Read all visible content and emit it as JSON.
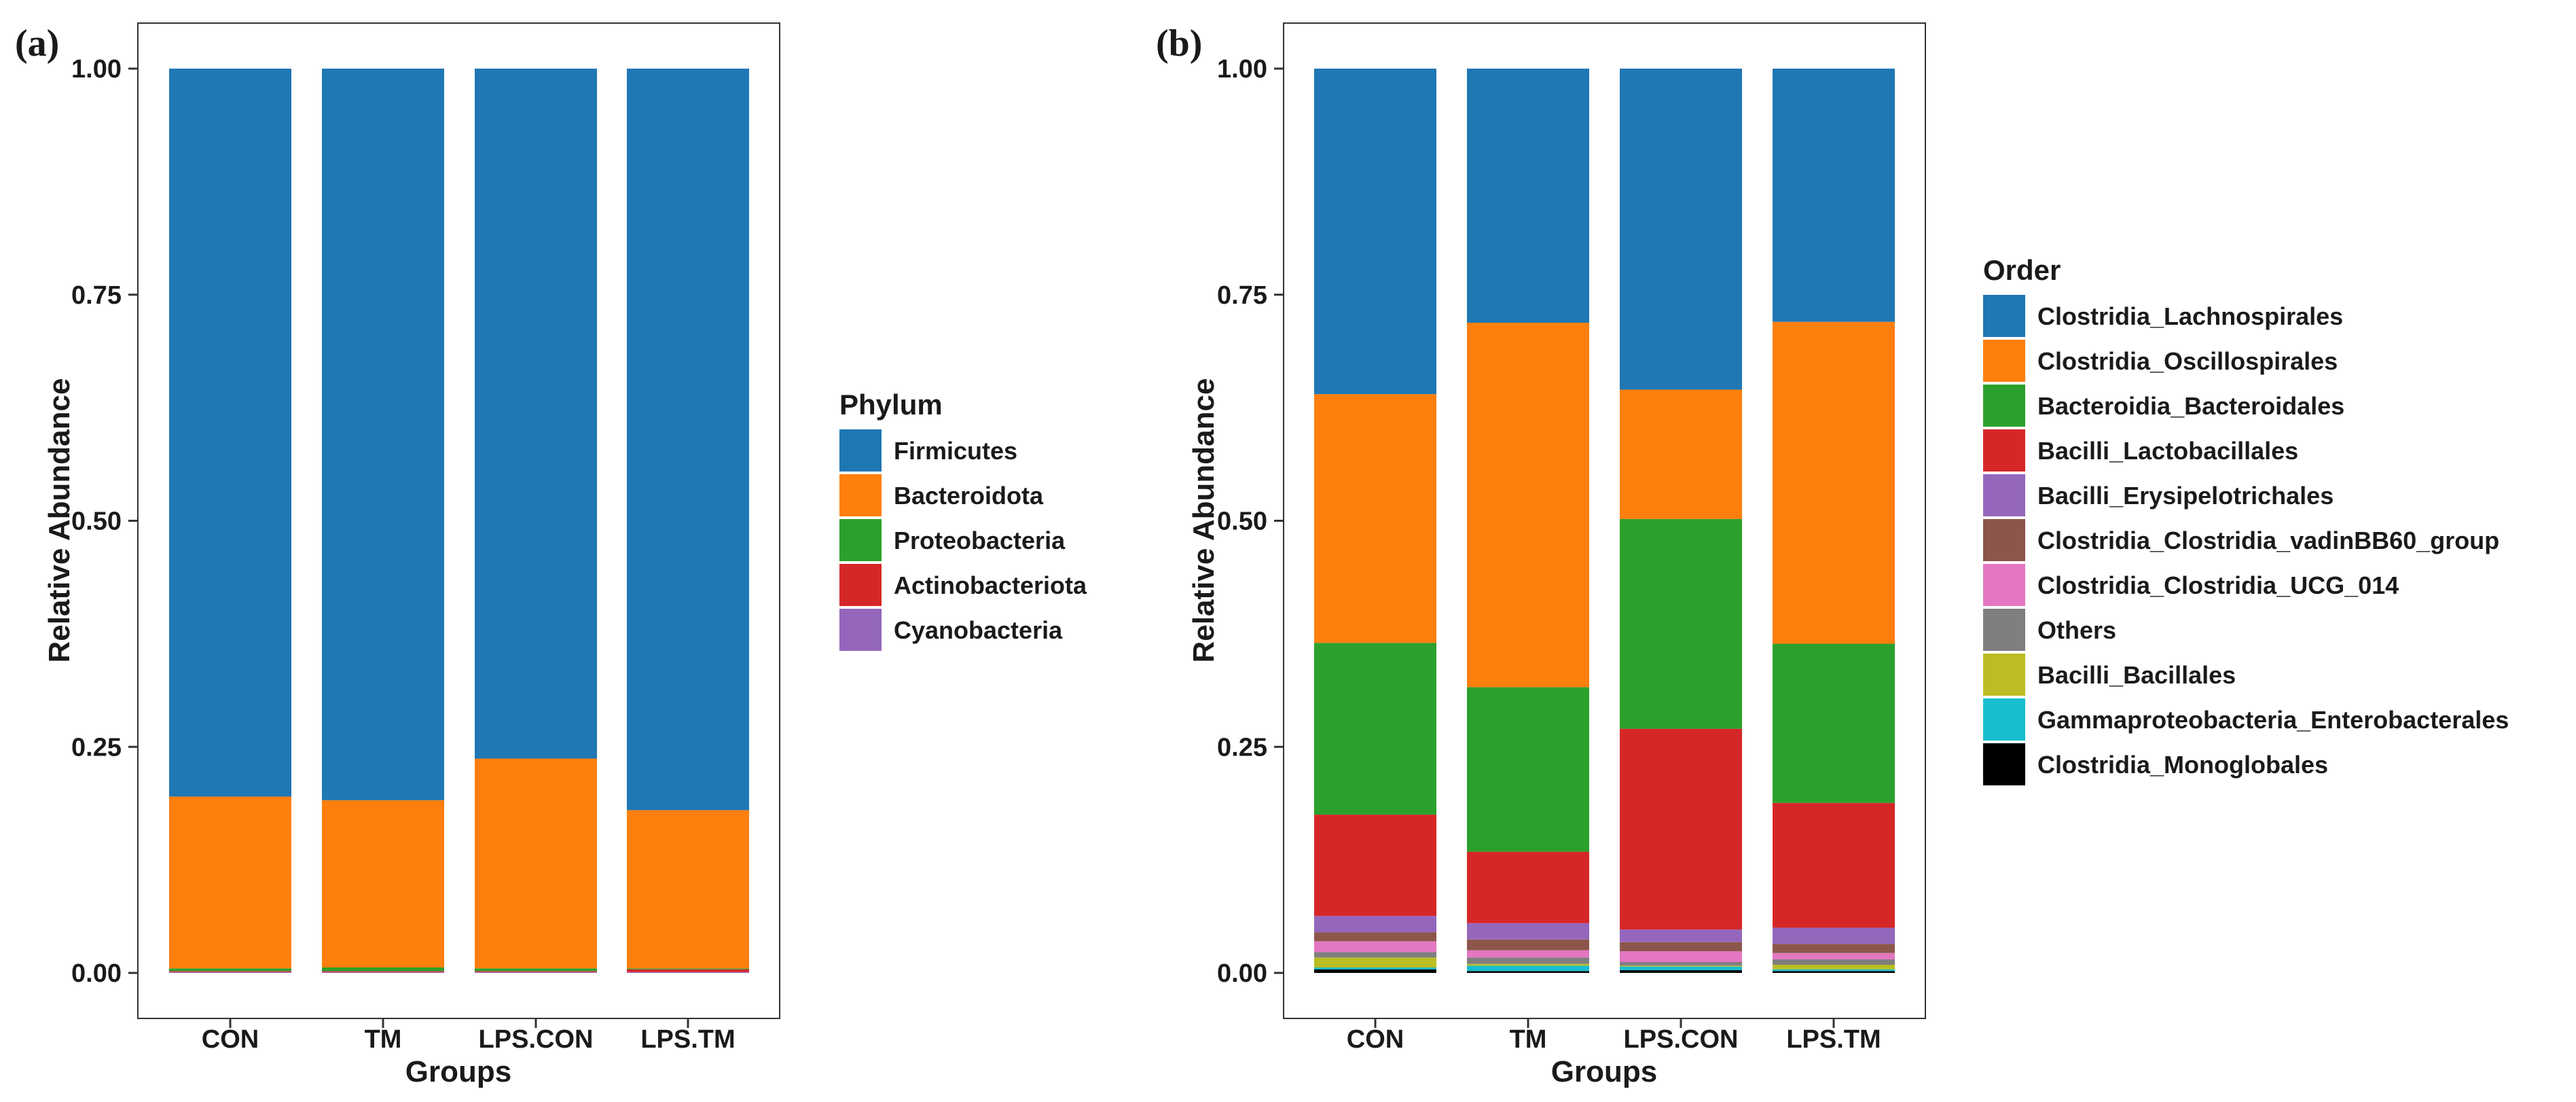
{
  "colors": {
    "Firmicutes": "#1f77b4",
    "Bacteroidota": "#ff7f0e",
    "Proteobacteria": "#2ca02c",
    "Actinobacteriota": "#d62728",
    "Cyanobacteria": "#9467bd",
    "Clostridia_Lachnospirales": "#1f77b4",
    "Clostridia_Oscillospirales": "#ff7f0e",
    "Bacteroidia_Bacteroidales": "#2ca02c",
    "Bacilli_Lactobacillales": "#d62728",
    "Bacilli_Erysipelotrichales": "#9467bd",
    "Clostridia_Clostridia_vadinBB60_group": "#8c564b",
    "Clostridia_Clostridia_UCG_014": "#e377c2",
    "Others": "#7f7f7f",
    "Bacilli_Bacillales": "#bcbd22",
    "Gammaproteobacteria_Enterobacterales": "#17becf",
    "Clostridia_Monoglobales": "#000000"
  },
  "chart_data": [
    {
      "type": "bar",
      "stacked": true,
      "panel_label": "(a)",
      "title": "",
      "xlabel": "Groups",
      "ylabel": "Relative Abundance",
      "ylim": [
        0,
        1
      ],
      "yticks": [
        "0.00",
        "0.25",
        "0.50",
        "0.75",
        "1.00"
      ],
      "categories": [
        "CON",
        "TM",
        "LPS.CON",
        "LPS.TM"
      ],
      "legend_title": "Phylum",
      "legend_position": "right",
      "series": [
        {
          "name": "Cyanobacteria",
          "values": [
            0.001,
            0.001,
            0.001,
            0.001
          ]
        },
        {
          "name": "Actinobacteriota",
          "values": [
            0.001,
            0.001,
            0.001,
            0.003
          ]
        },
        {
          "name": "Proteobacteria",
          "values": [
            0.003,
            0.004,
            0.003,
            0.001
          ]
        },
        {
          "name": "Bacteroidota",
          "values": [
            0.19,
            0.185,
            0.232,
            0.175
          ]
        },
        {
          "name": "Firmicutes",
          "values": [
            0.805,
            0.809,
            0.763,
            0.82
          ]
        }
      ],
      "legend_order": [
        "Firmicutes",
        "Bacteroidota",
        "Proteobacteria",
        "Actinobacteriota",
        "Cyanobacteria"
      ]
    },
    {
      "type": "bar",
      "stacked": true,
      "panel_label": "(b)",
      "title": "",
      "xlabel": "Groups",
      "ylabel": "Relative Abundance",
      "ylim": [
        0,
        1
      ],
      "yticks": [
        "0.00",
        "0.25",
        "0.50",
        "0.75",
        "1.00"
      ],
      "categories": [
        "CON",
        "TM",
        "LPS.CON",
        "LPS.TM"
      ],
      "legend_title": "Order",
      "legend_position": "right",
      "series": [
        {
          "name": "Clostridia_Monoglobales",
          "values": [
            0.004,
            0.002,
            0.003,
            0.002
          ]
        },
        {
          "name": "Gammaproteobacteria_Enterobacterales",
          "values": [
            0.002,
            0.006,
            0.004,
            0.002
          ]
        },
        {
          "name": "Bacilli_Bacillales",
          "values": [
            0.011,
            0.002,
            0.001,
            0.005
          ]
        },
        {
          "name": "Others",
          "values": [
            0.006,
            0.007,
            0.004,
            0.006
          ]
        },
        {
          "name": "Clostridia_Clostridia_UCG_014",
          "values": [
            0.012,
            0.008,
            0.012,
            0.007
          ]
        },
        {
          "name": "Clostridia_Clostridia_vadinBB60_group",
          "values": [
            0.01,
            0.012,
            0.01,
            0.01
          ]
        },
        {
          "name": "Bacilli_Erysipelotrichales",
          "values": [
            0.018,
            0.018,
            0.014,
            0.018
          ]
        },
        {
          "name": "Bacilli_Lactobacillales",
          "values": [
            0.112,
            0.079,
            0.222,
            0.138
          ]
        },
        {
          "name": "Bacteroidia_Bacteroidales",
          "values": [
            0.19,
            0.182,
            0.232,
            0.176
          ]
        },
        {
          "name": "Clostridia_Oscillospirales",
          "values": [
            0.275,
            0.403,
            0.143,
            0.356
          ]
        },
        {
          "name": "Clostridia_Lachnospirales",
          "values": [
            0.36,
            0.281,
            0.355,
            0.28
          ]
        }
      ],
      "legend_order": [
        "Clostridia_Lachnospirales",
        "Clostridia_Oscillospirales",
        "Bacteroidia_Bacteroidales",
        "Bacilli_Lactobacillales",
        "Bacilli_Erysipelotrichales",
        "Clostridia_Clostridia_vadinBB60_group",
        "Clostridia_Clostridia_UCG_014",
        "Others",
        "Bacilli_Bacillales",
        "Gammaproteobacteria_Enterobacterales",
        "Clostridia_Monoglobales"
      ]
    }
  ]
}
